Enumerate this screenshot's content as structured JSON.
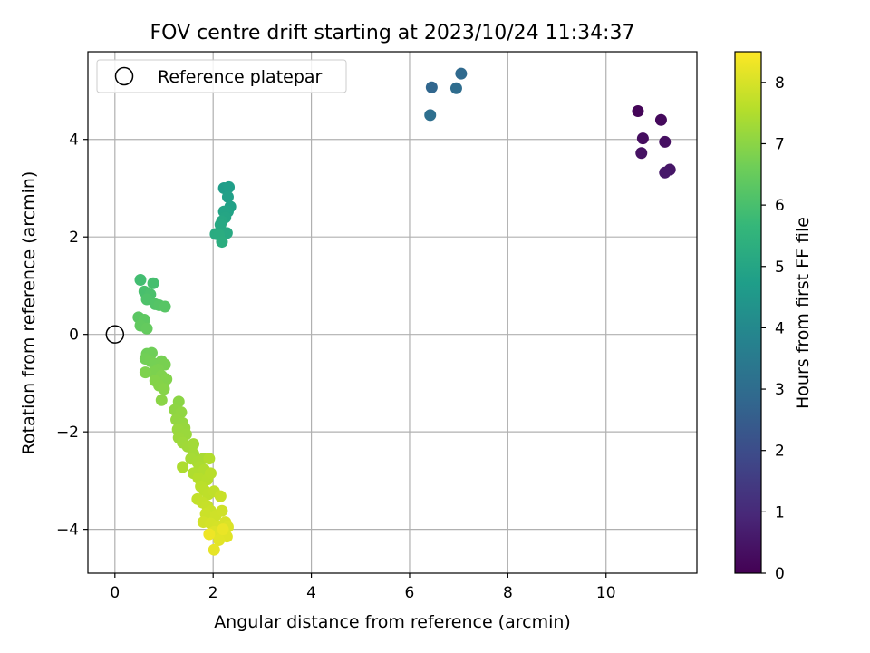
{
  "chart_data": {
    "type": "scatter",
    "title": "FOV centre drift starting at 2023/10/24 11:34:37",
    "xlabel": "Angular distance from reference (arcmin)",
    "ylabel": "Rotation from reference (arcmin)",
    "xlim": [
      -0.55,
      11.85
    ],
    "ylim": [
      -4.9,
      5.8
    ],
    "xticks": [
      0,
      2,
      4,
      6,
      8,
      10
    ],
    "yticks": [
      -4,
      -2,
      0,
      2,
      4
    ],
    "grid": true,
    "legend": {
      "location": "top-left",
      "entries": [
        "Reference platepar"
      ]
    },
    "reference_point": {
      "name": "Reference platepar",
      "x": 0,
      "y": 0
    },
    "colorbar": {
      "label": "Hours from first FF file",
      "colormap": "viridis",
      "range": [
        0,
        8.5
      ],
      "ticks": [
        0,
        1,
        2,
        3,
        4,
        5,
        6,
        7,
        8
      ]
    },
    "colormap_stops": [
      "#440154",
      "#482878",
      "#3e4989",
      "#31688e",
      "#26828e",
      "#1f9e89",
      "#35b779",
      "#6ece58",
      "#b5de2b",
      "#fde725"
    ],
    "points": [
      [
        10.65,
        4.58,
        0.1
      ],
      [
        11.12,
        4.4,
        0.2
      ],
      [
        10.75,
        4.02,
        0.3
      ],
      [
        11.2,
        3.95,
        0.35
      ],
      [
        10.72,
        3.72,
        0.4
      ],
      [
        11.3,
        3.38,
        0.5
      ],
      [
        11.2,
        3.32,
        0.55
      ],
      [
        6.45,
        5.07,
        2.8
      ],
      [
        7.05,
        5.35,
        2.9
      ],
      [
        6.95,
        5.05,
        3.0
      ],
      [
        6.42,
        4.5,
        3.1
      ],
      [
        2.22,
        3.0,
        4.7
      ],
      [
        2.32,
        3.02,
        4.75
      ],
      [
        2.3,
        2.82,
        4.8
      ],
      [
        2.35,
        2.62,
        4.85
      ],
      [
        2.3,
        2.52,
        4.9
      ],
      [
        2.22,
        2.52,
        4.95
      ],
      [
        2.25,
        2.4,
        5.0
      ],
      [
        2.18,
        2.32,
        5.05
      ],
      [
        2.15,
        2.25,
        5.1
      ],
      [
        2.28,
        2.08,
        5.15
      ],
      [
        2.05,
        2.06,
        5.2
      ],
      [
        2.12,
        2.04,
        5.25
      ],
      [
        2.18,
        1.9,
        5.3
      ],
      [
        0.52,
        1.12,
        5.9
      ],
      [
        0.78,
        1.05,
        5.95
      ],
      [
        0.6,
        0.88,
        6.0
      ],
      [
        0.72,
        0.82,
        6.05
      ],
      [
        0.65,
        0.72,
        6.1
      ],
      [
        0.82,
        0.62,
        6.15
      ],
      [
        0.9,
        0.6,
        6.2
      ],
      [
        1.02,
        0.57,
        6.25
      ],
      [
        0.48,
        0.35,
        6.3
      ],
      [
        0.6,
        0.3,
        6.35
      ],
      [
        0.52,
        0.18,
        6.4
      ],
      [
        0.65,
        0.12,
        6.45
      ],
      [
        0.65,
        -0.4,
        6.6
      ],
      [
        0.75,
        -0.38,
        6.62
      ],
      [
        0.62,
        -0.5,
        6.65
      ],
      [
        0.72,
        -0.55,
        6.68
      ],
      [
        0.8,
        -0.6,
        6.7
      ],
      [
        0.95,
        -0.55,
        6.72
      ],
      [
        1.02,
        -0.62,
        6.75
      ],
      [
        0.88,
        -0.72,
        6.78
      ],
      [
        0.78,
        -0.78,
        6.8
      ],
      [
        0.62,
        -0.78,
        6.82
      ],
      [
        0.95,
        -0.85,
        6.85
      ],
      [
        1.05,
        -0.92,
        6.88
      ],
      [
        0.82,
        -0.95,
        6.9
      ],
      [
        0.9,
        -1.05,
        6.92
      ],
      [
        1.0,
        -1.12,
        6.95
      ],
      [
        0.95,
        -1.35,
        6.98
      ],
      [
        1.3,
        -1.38,
        7.0
      ],
      [
        1.22,
        -1.55,
        7.05
      ],
      [
        1.35,
        -1.6,
        7.08
      ],
      [
        1.25,
        -1.75,
        7.1
      ],
      [
        1.38,
        -1.82,
        7.12
      ],
      [
        1.42,
        -1.92,
        7.15
      ],
      [
        1.28,
        -1.95,
        7.18
      ],
      [
        1.45,
        -2.05,
        7.2
      ],
      [
        1.3,
        -2.12,
        7.22
      ],
      [
        1.38,
        -2.22,
        7.25
      ],
      [
        1.48,
        -2.3,
        7.28
      ],
      [
        1.6,
        -2.25,
        7.3
      ],
      [
        1.6,
        -2.45,
        7.32
      ],
      [
        1.55,
        -2.55,
        7.35
      ],
      [
        1.68,
        -2.62,
        7.38
      ],
      [
        1.8,
        -2.55,
        7.4
      ],
      [
        1.72,
        -2.72,
        7.42
      ],
      [
        1.38,
        -2.72,
        7.45
      ],
      [
        1.6,
        -2.85,
        7.48
      ],
      [
        1.82,
        -2.78,
        7.5
      ],
      [
        1.92,
        -2.55,
        7.52
      ],
      [
        1.7,
        -2.95,
        7.55
      ],
      [
        1.88,
        -2.98,
        7.58
      ],
      [
        1.95,
        -2.85,
        7.6
      ],
      [
        1.75,
        -3.12,
        7.62
      ],
      [
        1.82,
        -3.2,
        7.65
      ],
      [
        1.9,
        -3.28,
        7.68
      ],
      [
        2.02,
        -3.22,
        7.7
      ],
      [
        1.68,
        -3.38,
        7.72
      ],
      [
        1.78,
        -3.45,
        7.75
      ],
      [
        1.88,
        -3.52,
        7.78
      ],
      [
        2.15,
        -3.32,
        7.8
      ],
      [
        1.95,
        -3.62,
        7.82
      ],
      [
        1.85,
        -3.68,
        7.85
      ],
      [
        2.05,
        -3.72,
        7.88
      ],
      [
        2.18,
        -3.62,
        7.9
      ],
      [
        1.8,
        -3.85,
        7.92
      ],
      [
        1.95,
        -3.88,
        7.95
      ],
      [
        2.1,
        -3.95,
        7.98
      ],
      [
        2.25,
        -3.85,
        8.0
      ],
      [
        2.3,
        -3.95,
        8.05
      ],
      [
        2.02,
        -4.05,
        8.08
      ],
      [
        2.18,
        -4.08,
        8.1
      ],
      [
        2.28,
        -4.15,
        8.12
      ],
      [
        2.12,
        -4.22,
        8.15
      ],
      [
        2.02,
        -4.42,
        8.2
      ],
      [
        2.2,
        -4.0,
        8.25
      ],
      [
        1.92,
        -4.1,
        8.3
      ]
    ]
  }
}
